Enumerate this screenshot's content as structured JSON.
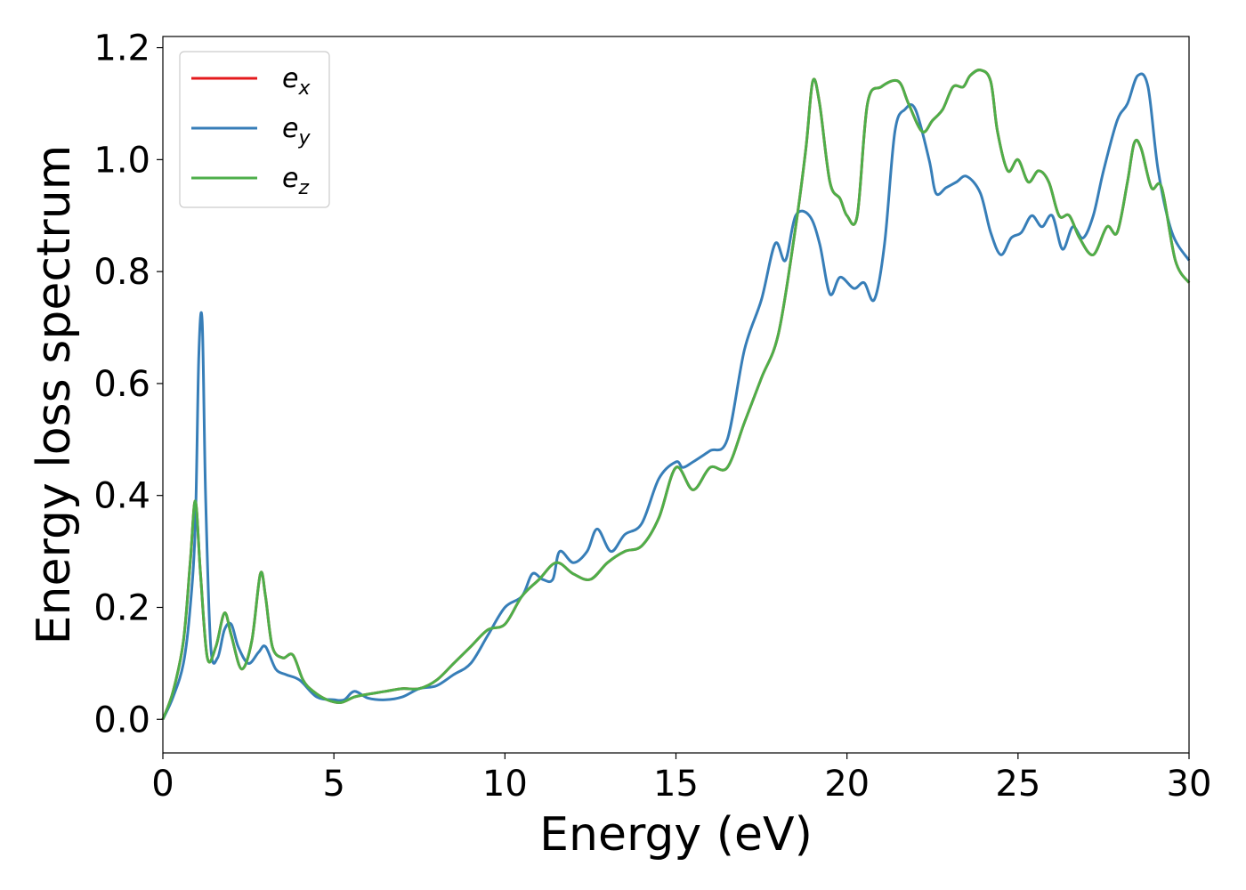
{
  "chart_data": {
    "type": "line",
    "xlabel": "Energy (eV)",
    "ylabel": "Energy loss spectrum",
    "xlim": [
      0,
      30
    ],
    "ylim": [
      -0.06,
      1.22
    ],
    "xticks": [
      "0",
      "5",
      "10",
      "15",
      "20",
      "25",
      "30"
    ],
    "yticks": [
      "0.0",
      "0.2",
      "0.4",
      "0.6",
      "0.8",
      "1.0",
      "1.2"
    ],
    "grid": false,
    "legend_position": "top-left",
    "series": [
      {
        "name": "e",
        "subscript": "x",
        "color": "#e41a1c",
        "x": [
          0,
          0.3,
          0.6,
          0.8,
          0.95,
          1.1,
          1.3,
          1.55,
          1.8,
          2.0,
          2.3,
          2.6,
          2.85,
          3.0,
          3.2,
          3.5,
          3.8,
          4.1,
          4.4,
          4.8,
          5.2,
          5.6,
          6.0,
          6.5,
          7.0,
          7.5,
          8.0,
          8.5,
          9.0,
          9.5,
          10.0,
          10.5,
          11.0,
          11.5,
          12.0,
          12.5,
          13.0,
          13.5,
          14.0,
          14.5,
          15.0,
          15.5,
          16.0,
          16.5,
          17.0,
          17.5,
          18.0,
          18.5,
          18.8,
          19.0,
          19.2,
          19.5,
          19.8,
          20.0,
          20.3,
          20.6,
          21.0,
          21.5,
          21.8,
          22.2,
          22.5,
          22.8,
          23.1,
          23.4,
          23.6,
          23.9,
          24.2,
          24.4,
          24.7,
          25.0,
          25.3,
          25.6,
          25.9,
          26.2,
          26.5,
          26.8,
          27.2,
          27.6,
          27.9,
          28.2,
          28.4,
          28.6,
          28.9,
          29.2,
          29.6,
          30.0
        ],
        "y": [
          0.0,
          0.05,
          0.14,
          0.28,
          0.39,
          0.26,
          0.11,
          0.13,
          0.19,
          0.15,
          0.09,
          0.14,
          0.26,
          0.22,
          0.13,
          0.11,
          0.115,
          0.07,
          0.05,
          0.035,
          0.03,
          0.04,
          0.045,
          0.05,
          0.055,
          0.055,
          0.07,
          0.1,
          0.13,
          0.16,
          0.17,
          0.22,
          0.25,
          0.28,
          0.26,
          0.25,
          0.28,
          0.3,
          0.31,
          0.36,
          0.45,
          0.41,
          0.45,
          0.45,
          0.53,
          0.61,
          0.69,
          0.88,
          1.02,
          1.14,
          1.1,
          0.96,
          0.93,
          0.9,
          0.9,
          1.1,
          1.13,
          1.14,
          1.1,
          1.05,
          1.07,
          1.09,
          1.13,
          1.13,
          1.15,
          1.16,
          1.14,
          1.05,
          0.98,
          1.0,
          0.96,
          0.98,
          0.96,
          0.9,
          0.9,
          0.86,
          0.83,
          0.88,
          0.87,
          0.96,
          1.03,
          1.02,
          0.95,
          0.95,
          0.82,
          0.78
        ]
      },
      {
        "name": "e",
        "subscript": "y",
        "color": "#377eb8",
        "x": [
          0,
          0.3,
          0.6,
          0.8,
          0.95,
          1.05,
          1.15,
          1.25,
          1.4,
          1.6,
          1.8,
          2.0,
          2.2,
          2.5,
          2.8,
          3.0,
          3.3,
          3.6,
          4.0,
          4.5,
          5.0,
          5.3,
          5.6,
          6.0,
          6.5,
          7.0,
          7.5,
          8.0,
          8.5,
          9.0,
          9.5,
          10.0,
          10.5,
          10.8,
          11.1,
          11.4,
          11.6,
          12.0,
          12.4,
          12.7,
          13.1,
          13.5,
          14.0,
          14.5,
          15.0,
          15.2,
          15.5,
          16.0,
          16.5,
          17.0,
          17.5,
          17.9,
          18.2,
          18.5,
          18.9,
          19.2,
          19.5,
          19.8,
          20.2,
          20.5,
          20.8,
          21.1,
          21.4,
          21.7,
          22.0,
          22.4,
          22.6,
          22.9,
          23.2,
          23.5,
          23.9,
          24.2,
          24.5,
          24.8,
          25.1,
          25.4,
          25.7,
          26.0,
          26.3,
          26.6,
          26.9,
          27.2,
          27.5,
          27.9,
          28.2,
          28.5,
          28.8,
          29.1,
          29.5,
          30.0
        ],
        "y": [
          0.0,
          0.04,
          0.1,
          0.2,
          0.35,
          0.65,
          0.71,
          0.4,
          0.13,
          0.11,
          0.16,
          0.17,
          0.13,
          0.1,
          0.12,
          0.13,
          0.09,
          0.08,
          0.07,
          0.04,
          0.035,
          0.035,
          0.05,
          0.038,
          0.035,
          0.04,
          0.055,
          0.06,
          0.08,
          0.1,
          0.15,
          0.2,
          0.22,
          0.26,
          0.25,
          0.25,
          0.3,
          0.28,
          0.3,
          0.34,
          0.3,
          0.33,
          0.35,
          0.43,
          0.46,
          0.45,
          0.46,
          0.48,
          0.5,
          0.66,
          0.75,
          0.85,
          0.82,
          0.9,
          0.9,
          0.85,
          0.76,
          0.79,
          0.77,
          0.78,
          0.75,
          0.85,
          1.05,
          1.09,
          1.09,
          1.0,
          0.94,
          0.95,
          0.96,
          0.97,
          0.94,
          0.87,
          0.83,
          0.86,
          0.87,
          0.9,
          0.88,
          0.9,
          0.84,
          0.88,
          0.86,
          0.9,
          0.98,
          1.07,
          1.1,
          1.15,
          1.13,
          0.98,
          0.87,
          0.82
        ]
      },
      {
        "name": "e",
        "subscript": "z",
        "color": "#4daf4a",
        "x": [
          0,
          0.3,
          0.6,
          0.8,
          0.95,
          1.1,
          1.3,
          1.55,
          1.8,
          2.0,
          2.3,
          2.6,
          2.85,
          3.0,
          3.2,
          3.5,
          3.8,
          4.1,
          4.4,
          4.8,
          5.2,
          5.6,
          6.0,
          6.5,
          7.0,
          7.5,
          8.0,
          8.5,
          9.0,
          9.5,
          10.0,
          10.5,
          11.0,
          11.5,
          12.0,
          12.5,
          13.0,
          13.5,
          14.0,
          14.5,
          15.0,
          15.5,
          16.0,
          16.5,
          17.0,
          17.5,
          18.0,
          18.5,
          18.8,
          19.0,
          19.2,
          19.5,
          19.8,
          20.0,
          20.3,
          20.6,
          21.0,
          21.5,
          21.8,
          22.2,
          22.5,
          22.8,
          23.1,
          23.4,
          23.6,
          23.9,
          24.2,
          24.4,
          24.7,
          25.0,
          25.3,
          25.6,
          25.9,
          26.2,
          26.5,
          26.8,
          27.2,
          27.6,
          27.9,
          28.2,
          28.4,
          28.6,
          28.9,
          29.2,
          29.6,
          30.0
        ],
        "y": [
          0.0,
          0.05,
          0.14,
          0.28,
          0.39,
          0.26,
          0.11,
          0.13,
          0.19,
          0.15,
          0.09,
          0.14,
          0.26,
          0.22,
          0.13,
          0.11,
          0.115,
          0.07,
          0.05,
          0.035,
          0.03,
          0.04,
          0.045,
          0.05,
          0.055,
          0.055,
          0.07,
          0.1,
          0.13,
          0.16,
          0.17,
          0.22,
          0.25,
          0.28,
          0.26,
          0.25,
          0.28,
          0.3,
          0.31,
          0.36,
          0.45,
          0.41,
          0.45,
          0.45,
          0.53,
          0.61,
          0.69,
          0.88,
          1.02,
          1.14,
          1.1,
          0.96,
          0.93,
          0.9,
          0.9,
          1.1,
          1.13,
          1.14,
          1.1,
          1.05,
          1.07,
          1.09,
          1.13,
          1.13,
          1.15,
          1.16,
          1.14,
          1.05,
          0.98,
          1.0,
          0.96,
          0.98,
          0.96,
          0.9,
          0.9,
          0.86,
          0.83,
          0.88,
          0.87,
          0.96,
          1.03,
          1.02,
          0.95,
          0.95,
          0.82,
          0.78
        ]
      }
    ]
  }
}
